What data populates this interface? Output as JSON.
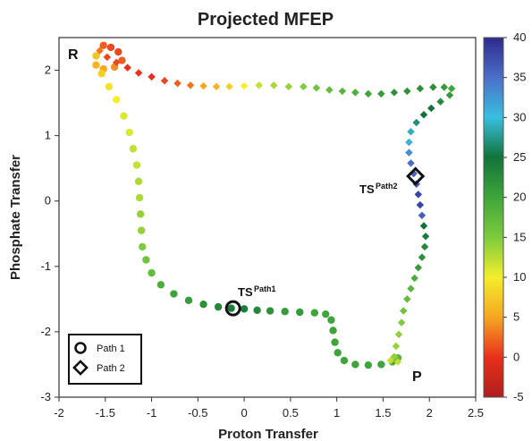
{
  "chart_data": {
    "type": "scatter",
    "title": "Projected MFEP",
    "xlabel": "Proton Transfer",
    "ylabel": "Phosphate Transfer",
    "xlim": [
      -2,
      2.5
    ],
    "ylim": [
      -3,
      2.5
    ],
    "xticks": [
      "-2",
      "-1.5",
      "-1",
      "-0.5",
      "0",
      "0.5",
      "1",
      "1.5",
      "2",
      "2.5"
    ],
    "yticks": [
      "-3",
      "-2",
      "-1",
      "0",
      "1",
      "2"
    ],
    "xtick_values": [
      -2,
      -1.5,
      -1,
      -0.5,
      0,
      0.5,
      1,
      1.5,
      2,
      2.5
    ],
    "ytick_values": [
      -3,
      -2,
      -1,
      0,
      1,
      2
    ],
    "grid": false,
    "legend_placement": "bottom-left",
    "colorbar": {
      "min": -5,
      "max": 40,
      "ticks": [
        "40",
        "35",
        "30",
        "25",
        "20",
        "15",
        "10",
        "5",
        "0",
        "-5"
      ],
      "tick_values": [
        40,
        35,
        30,
        25,
        20,
        15,
        10,
        5,
        0,
        -5
      ],
      "colors": [
        "#2e2a8c",
        "#4c6ec9",
        "#38bfe0",
        "#12733a",
        "#3fa53a",
        "#7dcb3e",
        "#f4ee2c",
        "#f6a623",
        "#e8301c",
        "#b01d1d"
      ]
    },
    "series": [
      {
        "name": "Path 1",
        "marker": "circle",
        "points": [
          [
            -1.52,
            2.38,
            2
          ],
          [
            -1.44,
            2.35,
            1
          ],
          [
            -1.36,
            2.28,
            1
          ],
          [
            -1.32,
            2.15,
            2
          ],
          [
            -1.4,
            2.05,
            4
          ],
          [
            -1.52,
            2.02,
            5
          ],
          [
            -1.6,
            2.08,
            6
          ],
          [
            -1.6,
            2.22,
            7
          ],
          [
            -1.54,
            1.95,
            8
          ],
          [
            -1.46,
            1.75,
            9
          ],
          [
            -1.38,
            1.55,
            10
          ],
          [
            -1.3,
            1.3,
            11
          ],
          [
            -1.24,
            1.05,
            11
          ],
          [
            -1.2,
            0.8,
            12
          ],
          [
            -1.16,
            0.55,
            12
          ],
          [
            -1.14,
            0.3,
            13
          ],
          [
            -1.13,
            0.05,
            13
          ],
          [
            -1.12,
            -0.2,
            14
          ],
          [
            -1.11,
            -0.45,
            14
          ],
          [
            -1.1,
            -0.7,
            15
          ],
          [
            -1.06,
            -0.9,
            16
          ],
          [
            -1.0,
            -1.1,
            17
          ],
          [
            -0.9,
            -1.28,
            19
          ],
          [
            -0.76,
            -1.42,
            20
          ],
          [
            -0.6,
            -1.52,
            21
          ],
          [
            -0.44,
            -1.58,
            22
          ],
          [
            -0.28,
            -1.62,
            23
          ],
          [
            -0.14,
            -1.64,
            24
          ],
          [
            0.0,
            -1.65,
            24
          ],
          [
            0.14,
            -1.67,
            23
          ],
          [
            0.28,
            -1.68,
            22
          ],
          [
            0.44,
            -1.69,
            21
          ],
          [
            0.6,
            -1.7,
            21
          ],
          [
            0.76,
            -1.71,
            20
          ],
          [
            0.88,
            -1.73,
            20
          ],
          [
            0.94,
            -1.82,
            20
          ],
          [
            0.96,
            -1.98,
            20
          ],
          [
            0.98,
            -2.16,
            20
          ],
          [
            1.01,
            -2.32,
            20
          ],
          [
            1.08,
            -2.44,
            20
          ],
          [
            1.2,
            -2.5,
            20
          ],
          [
            1.34,
            -2.51,
            20
          ],
          [
            1.48,
            -2.5,
            20
          ],
          [
            1.6,
            -2.46,
            19
          ],
          [
            1.66,
            -2.4,
            18
          ]
        ]
      },
      {
        "name": "Path 2",
        "marker": "diamond",
        "points": [
          [
            -1.56,
            2.3,
            3
          ],
          [
            -1.48,
            2.2,
            1
          ],
          [
            -1.38,
            2.12,
            1
          ],
          [
            -1.26,
            2.04,
            0
          ],
          [
            -1.14,
            1.96,
            0
          ],
          [
            -1.0,
            1.9,
            0
          ],
          [
            -0.86,
            1.84,
            1
          ],
          [
            -0.72,
            1.8,
            2
          ],
          [
            -0.58,
            1.77,
            3
          ],
          [
            -0.44,
            1.76,
            5
          ],
          [
            -0.3,
            1.75,
            6
          ],
          [
            -0.16,
            1.75,
            8
          ],
          [
            0.0,
            1.76,
            10
          ],
          [
            0.16,
            1.77,
            12
          ],
          [
            0.32,
            1.77,
            13
          ],
          [
            0.48,
            1.75,
            14
          ],
          [
            0.64,
            1.75,
            15
          ],
          [
            0.78,
            1.73,
            16
          ],
          [
            0.92,
            1.7,
            17
          ],
          [
            1.06,
            1.68,
            18
          ],
          [
            1.2,
            1.66,
            19
          ],
          [
            1.34,
            1.64,
            20
          ],
          [
            1.48,
            1.64,
            21
          ],
          [
            1.62,
            1.66,
            22
          ],
          [
            1.76,
            1.68,
            22
          ],
          [
            1.9,
            1.72,
            22
          ],
          [
            2.04,
            1.74,
            22
          ],
          [
            2.16,
            1.74,
            21
          ],
          [
            2.24,
            1.72,
            20
          ],
          [
            2.22,
            1.62,
            21
          ],
          [
            2.12,
            1.52,
            23
          ],
          [
            2.02,
            1.42,
            25
          ],
          [
            1.94,
            1.32,
            25
          ],
          [
            1.86,
            1.2,
            27
          ],
          [
            1.8,
            1.06,
            29
          ],
          [
            1.78,
            0.9,
            31
          ],
          [
            1.78,
            0.74,
            33
          ],
          [
            1.8,
            0.58,
            35
          ],
          [
            1.83,
            0.42,
            36
          ],
          [
            1.86,
            0.26,
            37
          ],
          [
            1.88,
            0.1,
            38
          ],
          [
            1.9,
            -0.06,
            38
          ],
          [
            1.92,
            -0.22,
            36
          ],
          [
            1.94,
            -0.38,
            25
          ],
          [
            1.96,
            -0.54,
            24
          ],
          [
            1.95,
            -0.7,
            23
          ],
          [
            1.92,
            -0.86,
            22
          ],
          [
            1.88,
            -1.02,
            21
          ],
          [
            1.84,
            -1.18,
            19
          ],
          [
            1.8,
            -1.34,
            18
          ],
          [
            1.76,
            -1.5,
            17
          ],
          [
            1.72,
            -1.68,
            16
          ],
          [
            1.7,
            -1.86,
            15
          ],
          [
            1.67,
            -2.04,
            14
          ],
          [
            1.64,
            -2.22,
            14
          ],
          [
            1.62,
            -2.38,
            14
          ],
          [
            1.66,
            -2.46,
            12
          ],
          [
            1.58,
            -2.44,
            12
          ]
        ]
      }
    ],
    "annotations": {
      "R": {
        "text": "R"
      },
      "P": {
        "text": "P"
      },
      "ts1": {
        "main": "TS",
        "sub": "Path1",
        "marker": "circle",
        "x": -0.12,
        "y": -1.64
      },
      "ts2": {
        "main": "TS",
        "sub": "Path2",
        "marker": "diamond",
        "x": 1.85,
        "y": 0.38
      }
    },
    "legend": [
      {
        "label": "Path 1",
        "marker": "circle"
      },
      {
        "label": "Path 2",
        "marker": "diamond"
      }
    ]
  }
}
